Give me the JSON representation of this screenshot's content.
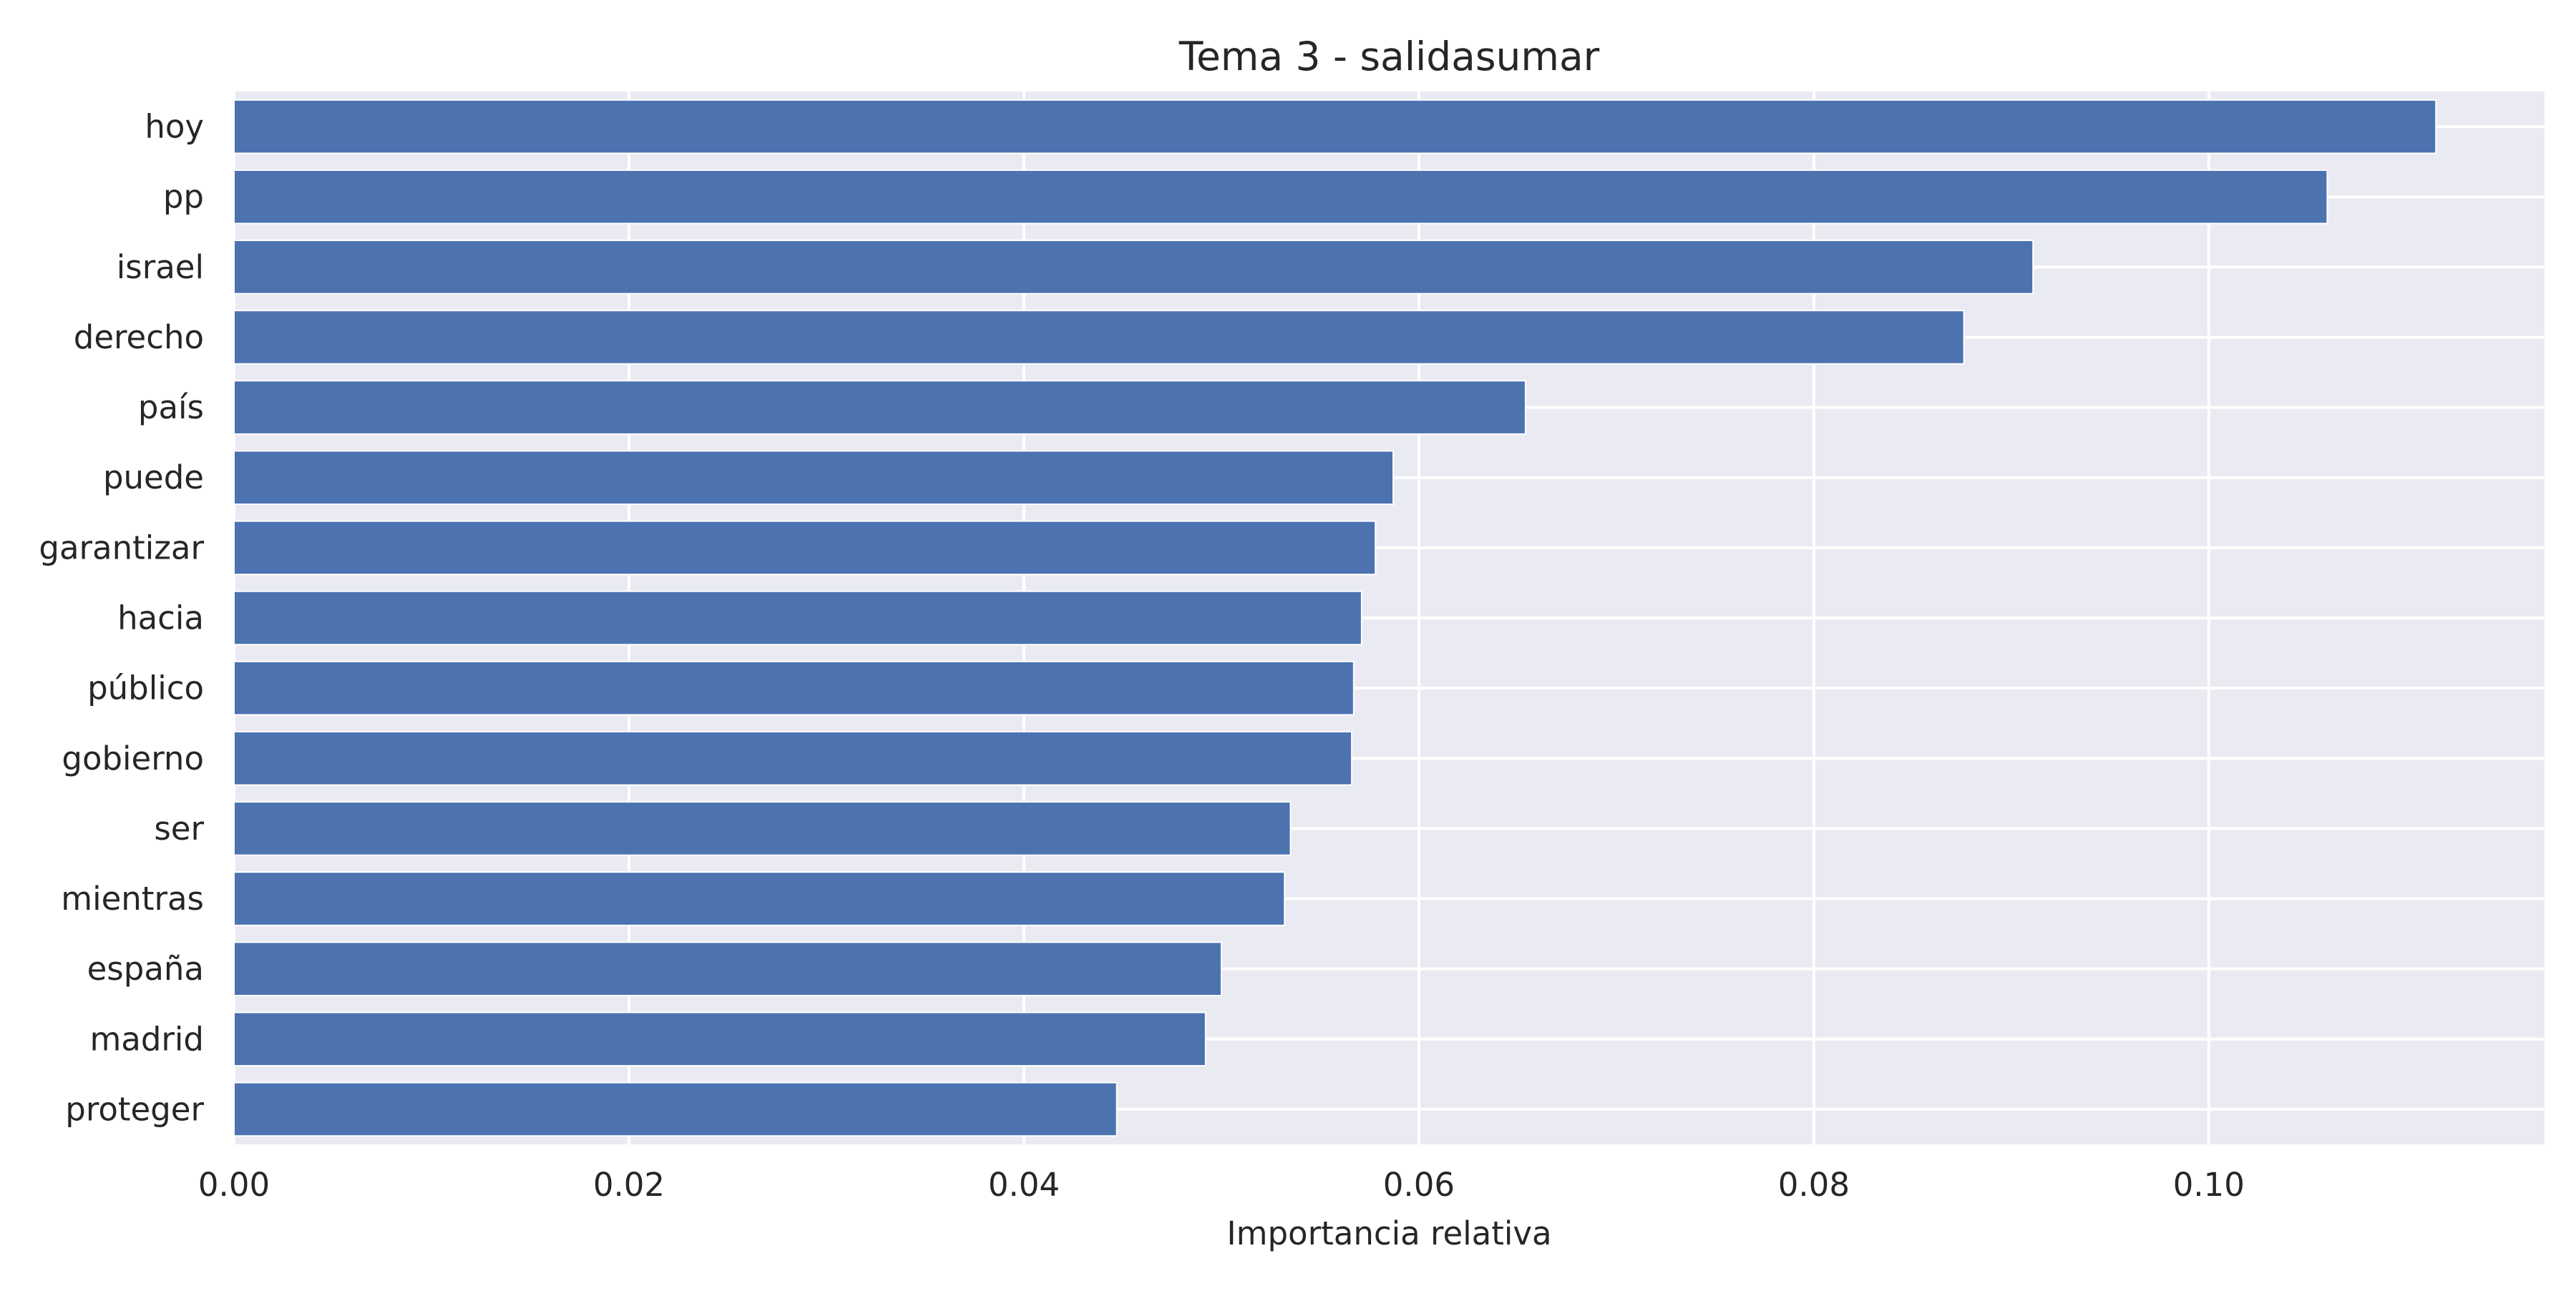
{
  "chart_data": {
    "type": "bar",
    "orientation": "horizontal",
    "title": "Tema 3 - salidasumar",
    "xlabel": "Importancia relativa",
    "ylabel": "",
    "categories": [
      "hoy",
      "pp",
      "israel",
      "derecho",
      "país",
      "puede",
      "garantizar",
      "hacia",
      "público",
      "gobierno",
      "ser",
      "mientras",
      "españa",
      "madrid",
      "proteger"
    ],
    "values": [
      0.1115,
      0.106,
      0.0911,
      0.0876,
      0.0654,
      0.0587,
      0.0578,
      0.0571,
      0.0567,
      0.0566,
      0.0535,
      0.0532,
      0.05,
      0.0492,
      0.0447
    ],
    "xlim": [
      0.0,
      0.117
    ],
    "xticks": [
      0.0,
      0.02,
      0.04,
      0.06,
      0.08,
      0.1
    ],
    "xtick_labels": [
      "0.00",
      "0.02",
      "0.04",
      "0.06",
      "0.08",
      "0.10"
    ],
    "grid": true,
    "colors": {
      "bar": "#4c72b0",
      "plot_background": "#eaeaf2",
      "grid": "#ffffff",
      "text": "#262626"
    }
  }
}
